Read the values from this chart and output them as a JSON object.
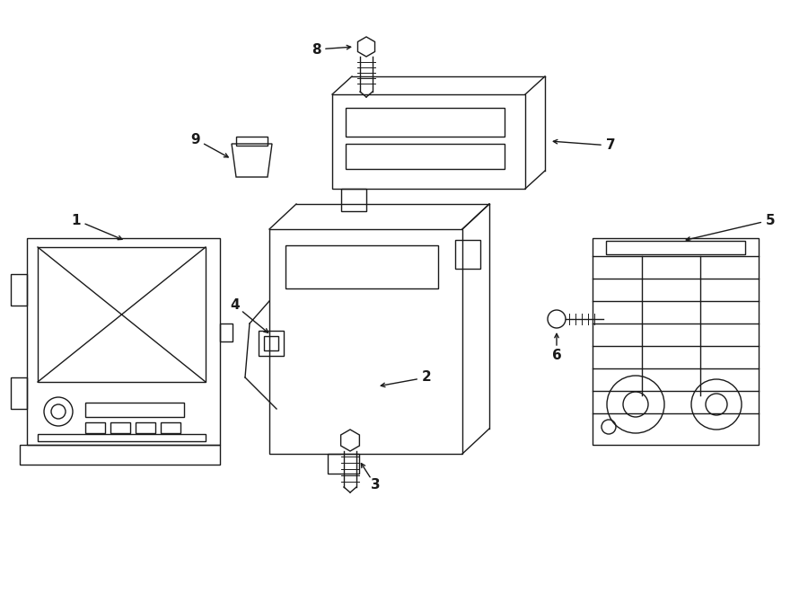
{
  "background_color": "#ffffff",
  "line_color": "#1a1a1a",
  "label_color": "#1a1a1a",
  "figsize": [
    9.0,
    6.61
  ],
  "dpi": 100,
  "lw": 1.0
}
